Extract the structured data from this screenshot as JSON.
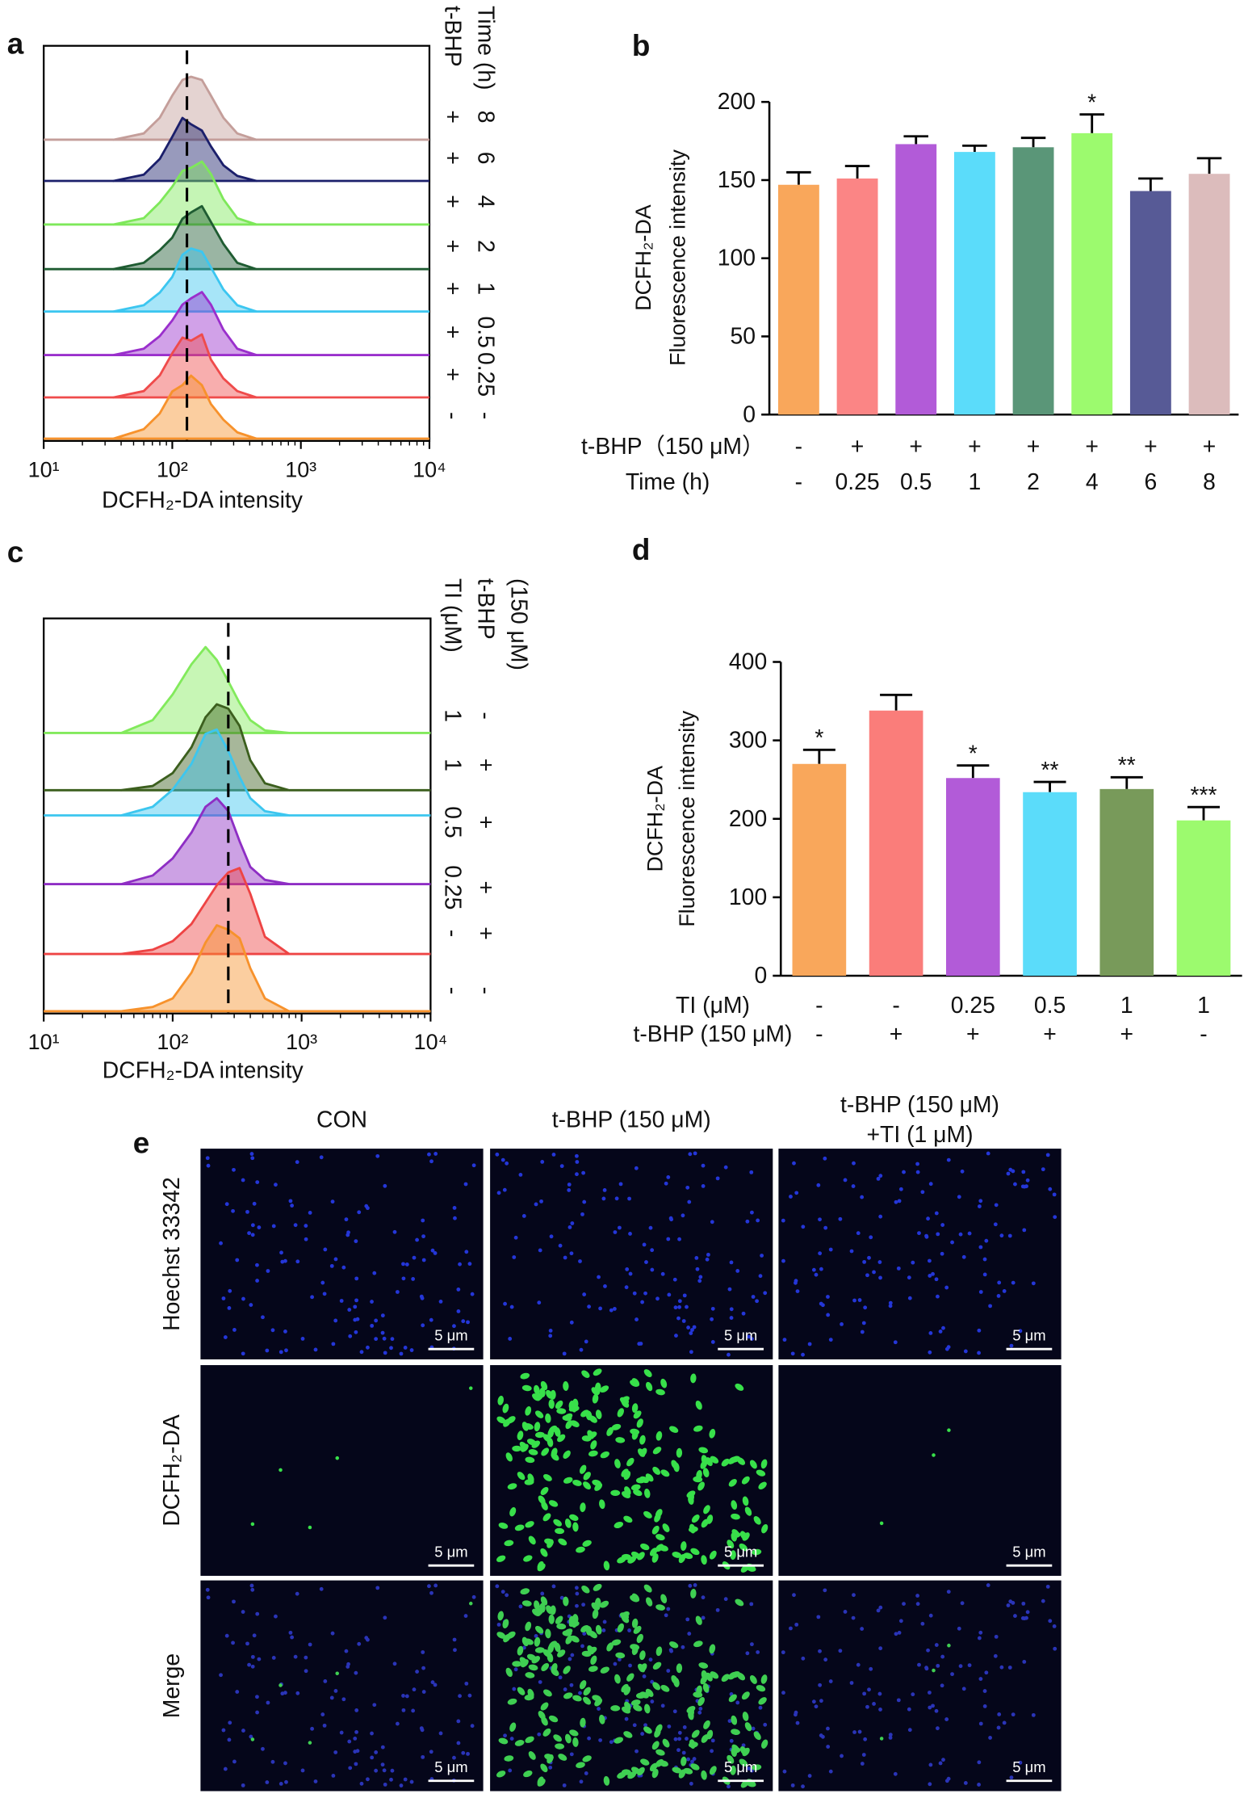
{
  "chart_data": [
    {
      "type": "histogram-overlay",
      "panel_label": "a",
      "x_label": "DCFH₂-DA intensity",
      "log_x": true,
      "xlim": [
        10,
        10000
      ],
      "xticks": [
        {
          "value": 10,
          "label": "10¹"
        },
        {
          "value": 100,
          "label": "10²"
        },
        {
          "value": 1000,
          "label": "10³"
        },
        {
          "value": 10000,
          "label": "10⁴"
        }
      ],
      "reference_line": 130,
      "x": [
        35,
        60,
        80,
        100,
        120,
        140,
        170,
        200,
        250,
        320,
        450
      ],
      "series": [
        {
          "color": "#f7922c",
          "values": [
            0,
            0.15,
            0.4,
            0.75,
            0.85,
            1.0,
            0.85,
            0.55,
            0.3,
            0.1,
            0
          ]
        },
        {
          "color": "#ef4b4b",
          "values": [
            0,
            0.1,
            0.35,
            0.7,
            0.95,
            0.9,
            1.0,
            0.6,
            0.3,
            0.1,
            0
          ]
        },
        {
          "color": "#9a2fcc",
          "values": [
            0,
            0.1,
            0.3,
            0.55,
            0.8,
            0.9,
            1.0,
            0.8,
            0.4,
            0.1,
            0
          ]
        },
        {
          "color": "#3cc6f0",
          "values": [
            0,
            0.1,
            0.3,
            0.55,
            0.9,
            1.0,
            0.95,
            0.7,
            0.35,
            0.1,
            0
          ]
        },
        {
          "color": "#1f5c32",
          "values": [
            0,
            0.1,
            0.3,
            0.5,
            0.8,
            0.9,
            1.0,
            0.75,
            0.4,
            0.1,
            0
          ]
        },
        {
          "color": "#7ee85a",
          "values": [
            0,
            0.1,
            0.35,
            0.6,
            0.85,
            0.9,
            1.0,
            0.8,
            0.4,
            0.1,
            0
          ]
        },
        {
          "color": "#1b1f6b",
          "values": [
            0,
            0.1,
            0.35,
            0.7,
            1.0,
            0.9,
            0.8,
            0.55,
            0.25,
            0.08,
            0
          ]
        },
        {
          "color": "#c49e9a",
          "values": [
            0,
            0.1,
            0.35,
            0.7,
            0.95,
            1.0,
            0.95,
            0.7,
            0.35,
            0.1,
            0
          ]
        }
      ],
      "rows": [
        {
          "title": [
            "t-BHP"
          ],
          "values": [
            "-",
            "+",
            "+",
            "+",
            "+",
            "+",
            "+",
            "+"
          ]
        },
        {
          "title": [
            "Time (h)"
          ],
          "values": [
            "-",
            "0.25",
            "0.5",
            "1",
            "2",
            "4",
            "6",
            "8"
          ]
        }
      ]
    },
    {
      "type": "bar",
      "panel_label": "b",
      "y_label": [
        "DCFH₂-DA",
        "Fluorescence intensity"
      ],
      "ylim": [
        0,
        200
      ],
      "yticks": [
        0,
        50,
        100,
        150,
        200
      ],
      "values": [
        147,
        151,
        173,
        168,
        171,
        180,
        143,
        154
      ],
      "errors": [
        8,
        8,
        5,
        4,
        6,
        12,
        8,
        10
      ],
      "colors": [
        "#f9a75b",
        "#fb8585",
        "#b25bd8",
        "#5bdcfa",
        "#5a9678",
        "#9cfa6e",
        "#575a96",
        "#dcbcbc"
      ],
      "significance": [
        null,
        null,
        null,
        null,
        null,
        "*",
        null,
        null
      ],
      "rows": [
        {
          "title": "t-BHP（150 μM）",
          "values": [
            "-",
            "+",
            "+",
            "+",
            "+",
            "+",
            "+",
            "+"
          ]
        },
        {
          "title": "Time (h)",
          "values": [
            "-",
            "0.25",
            "0.5",
            "1",
            "2",
            "4",
            "6",
            "8"
          ]
        }
      ]
    },
    {
      "type": "histogram-overlay",
      "panel_label": "c",
      "x_label": "DCFH₂-DA intensity",
      "log_x": true,
      "xlim": [
        10,
        10000
      ],
      "xticks": [
        {
          "value": 10,
          "label": "10¹"
        },
        {
          "value": 100,
          "label": "10²"
        },
        {
          "value": 1000,
          "label": "10³"
        },
        {
          "value": 10000,
          "label": "10⁴"
        }
      ],
      "reference_line": 270,
      "x": [
        40,
        70,
        100,
        140,
        180,
        220,
        270,
        330,
        400,
        520,
        800
      ],
      "series": [
        {
          "color": "#f7922c",
          "values": [
            0,
            0.05,
            0.15,
            0.45,
            0.8,
            1.0,
            0.95,
            0.85,
            0.5,
            0.15,
            0
          ]
        },
        {
          "color": "#ee4444",
          "values": [
            0,
            0.05,
            0.15,
            0.35,
            0.6,
            0.8,
            0.95,
            1.0,
            0.7,
            0.2,
            0
          ]
        },
        {
          "color": "#8e2ec4",
          "values": [
            0,
            0.1,
            0.3,
            0.6,
            0.9,
            1.0,
            0.85,
            0.5,
            0.2,
            0.05,
            0
          ]
        },
        {
          "color": "#3cc6ef",
          "values": [
            0,
            0.1,
            0.3,
            0.6,
            0.95,
            1.0,
            0.75,
            0.45,
            0.2,
            0.05,
            0
          ]
        },
        {
          "color": "#3c5f1e",
          "values": [
            0,
            0.05,
            0.2,
            0.5,
            0.85,
            1.0,
            0.95,
            0.75,
            0.35,
            0.08,
            0
          ]
        },
        {
          "color": "#82ea5c",
          "values": [
            0,
            0.15,
            0.45,
            0.8,
            1.0,
            0.85,
            0.6,
            0.35,
            0.15,
            0.03,
            0
          ]
        }
      ],
      "rows": [
        {
          "title": [
            "TI (μM)"
          ],
          "values": [
            "-",
            "-",
            "0.25",
            "0.5",
            "1",
            "1"
          ]
        },
        {
          "title": [
            "t-BHP",
            "(150 μM)"
          ],
          "values": [
            "-",
            "+",
            "+",
            "+",
            "+",
            "-"
          ]
        }
      ]
    },
    {
      "type": "bar",
      "panel_label": "d",
      "y_label": [
        "DCFH₂-DA",
        "Fluorescence intensity"
      ],
      "ylim": [
        0,
        400
      ],
      "yticks": [
        0,
        100,
        200,
        300,
        400
      ],
      "values": [
        270,
        338,
        252,
        234,
        238,
        198
      ],
      "errors": [
        18,
        20,
        16,
        13,
        15,
        17
      ],
      "colors": [
        "#f9a75b",
        "#fa7d7a",
        "#b25bd8",
        "#5bdcfa",
        "#789a5a",
        "#9cfa6e"
      ],
      "significance": [
        "*",
        null,
        "*",
        "**",
        "**",
        "***"
      ],
      "rows": [
        {
          "title": "TI (μM)",
          "values": [
            "-",
            "-",
            "0.25",
            "0.5",
            "1",
            "1"
          ]
        },
        {
          "title": "t-BHP (150 μM)",
          "values": [
            "-",
            "+",
            "+",
            "+",
            "+",
            "-"
          ]
        }
      ]
    }
  ],
  "figure_e": {
    "panel_label": "e",
    "columns": [
      [
        "CON"
      ],
      [
        "t-BHP (150 μM)"
      ],
      [
        "t-BHP (150 μM)",
        "+TI (1 μM)"
      ]
    ],
    "rows": [
      "Hoechst 33342",
      "DCFH₂-DA",
      "Merge"
    ],
    "scale_bar": "5 μm"
  }
}
